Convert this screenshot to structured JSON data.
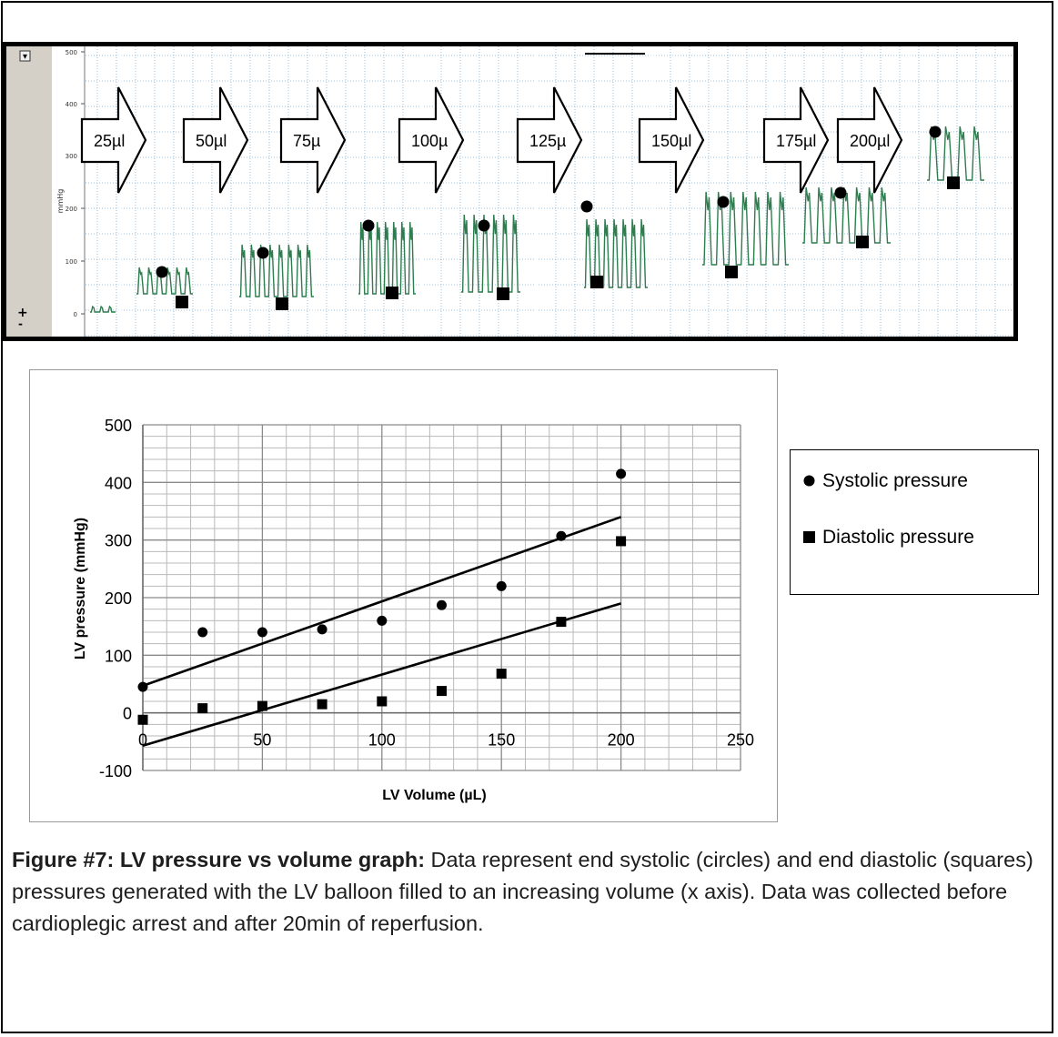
{
  "trace_panel": {
    "y_axis_label": "mmHg",
    "y_ticks": [
      "500",
      "400",
      "300",
      "200",
      "100",
      "0"
    ],
    "scroll_buttons": {
      "down": "▾",
      "plus": "+",
      "minus": "-"
    },
    "volume_steps": [
      "25µl",
      "50µl",
      "75µ",
      "100µ",
      "125µ",
      "150µl",
      "175µl",
      "200µl"
    ]
  },
  "chart_data": {
    "type": "scatter",
    "xlabel": "LV Volume (µL)",
    "ylabel": "LV pressure (mmHg)",
    "xlim": [
      0,
      250
    ],
    "ylim": [
      -100,
      500
    ],
    "x_ticks": [
      0,
      50,
      100,
      150,
      200,
      250
    ],
    "y_ticks": [
      -100,
      0,
      100,
      200,
      300,
      400,
      500
    ],
    "grid": true,
    "legend_position": "right",
    "series": [
      {
        "name": "Systolic pressure",
        "marker": "circle",
        "x": [
          0,
          25,
          50,
          75,
          100,
          125,
          150,
          175,
          200
        ],
        "y": [
          45,
          140,
          140,
          145,
          160,
          187,
          220,
          307,
          415
        ],
        "trendline": {
          "x": [
            0,
            200
          ],
          "y": [
            47,
            340
          ]
        }
      },
      {
        "name": "Diastolic pressure",
        "marker": "square",
        "x": [
          0,
          25,
          50,
          75,
          100,
          125,
          150,
          175,
          200
        ],
        "y": [
          -12,
          8,
          12,
          15,
          20,
          38,
          68,
          158,
          298
        ],
        "trendline": {
          "x": [
            0,
            200
          ],
          "y": [
            -57,
            190
          ]
        }
      }
    ]
  },
  "caption": {
    "title": "Figure #7: LV pressure vs volume graph:",
    "text": " Data represent end systolic (circles) and end diastolic (squares) pressures generated with the LV balloon filled to an increasing volume (x axis). Data was collected before cardioplegic arrest and after 20min of reperfusion."
  },
  "colors": {
    "trace": "#2f7d4f",
    "grid_dotted": "#7fb0d8",
    "marker": "#000000",
    "axis_panel": "#d4d0c8"
  }
}
